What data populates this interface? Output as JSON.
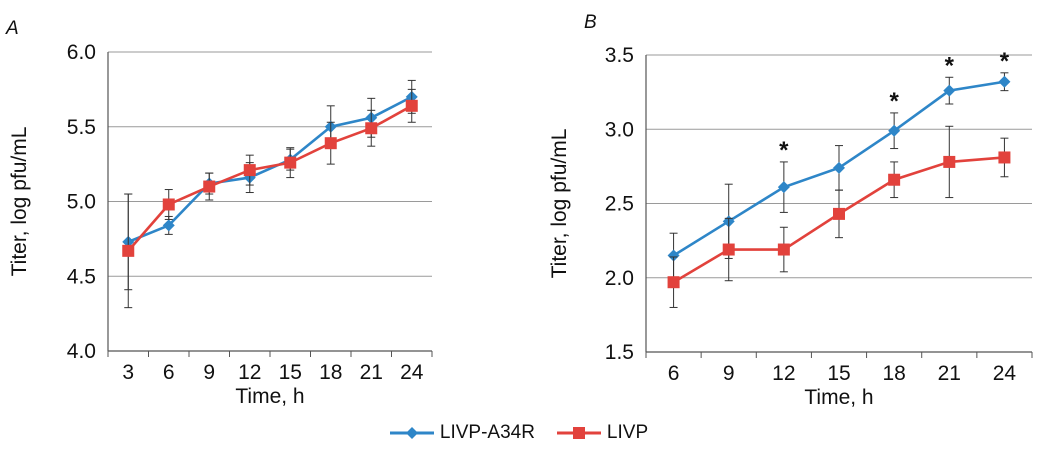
{
  "panels": [
    {
      "label": "A"
    },
    {
      "label": "B"
    }
  ],
  "colors": {
    "LIVP-A34R": "#2e86c8",
    "LIVP": "#e2423c",
    "grid": "#9a9a9a",
    "axis": "#555555",
    "error": "#333333"
  },
  "chart_data": [
    {
      "type": "line",
      "panel": "A",
      "xlabel": "Time, h",
      "ylabel": "Titer, log pfu/mL",
      "x": [
        3,
        6,
        9,
        12,
        15,
        18,
        21,
        24
      ],
      "ylim": [
        4.0,
        6.0
      ],
      "yticks": [
        4.0,
        4.5,
        5.0,
        5.5,
        6.0
      ],
      "ytick_labels": [
        "4.0",
        "4.5",
        "5.0",
        "5.5",
        "6.0"
      ],
      "grid": "horizontal",
      "series": [
        {
          "name": "LIVP-A34R",
          "marker": "diamond",
          "values": [
            4.73,
            4.84,
            5.12,
            5.16,
            5.28,
            5.5,
            5.56,
            5.7
          ],
          "errors": [
            0.32,
            0.06,
            0.07,
            0.1,
            0.07,
            0.14,
            0.13,
            0.11
          ]
        },
        {
          "name": "LIVP",
          "marker": "square",
          "values": [
            4.67,
            4.98,
            5.1,
            5.21,
            5.26,
            5.39,
            5.49,
            5.64
          ],
          "errors": [
            0.38,
            0.1,
            0.09,
            0.1,
            0.1,
            0.14,
            0.12,
            0.11
          ]
        }
      ],
      "annotations": []
    },
    {
      "type": "line",
      "panel": "B",
      "xlabel": "Time, h",
      "ylabel": "Titer, log pfu/mL",
      "x": [
        6,
        9,
        12,
        15,
        18,
        21,
        24
      ],
      "ylim": [
        1.5,
        3.5
      ],
      "yticks": [
        1.5,
        2.0,
        2.5,
        3.0,
        3.5
      ],
      "ytick_labels": [
        "1.5",
        "2.0",
        "2.5",
        "3.0",
        "3.5"
      ],
      "grid": "horizontal",
      "series": [
        {
          "name": "LIVP-A34R",
          "marker": "diamond",
          "values": [
            2.15,
            2.38,
            2.61,
            2.74,
            2.99,
            3.26,
            3.32
          ],
          "errors": [
            0.15,
            0.25,
            0.17,
            0.15,
            0.12,
            0.09,
            0.06
          ]
        },
        {
          "name": "LIVP",
          "marker": "square",
          "values": [
            1.97,
            2.19,
            2.19,
            2.43,
            2.66,
            2.78,
            2.81
          ],
          "errors": [
            0.17,
            0.21,
            0.15,
            0.16,
            0.12,
            0.24,
            0.13
          ]
        }
      ],
      "annotations": [
        {
          "x": 12,
          "text": "*"
        },
        {
          "x": 18,
          "text": "*"
        },
        {
          "x": 21,
          "text": "*"
        },
        {
          "x": 24,
          "text": "*"
        }
      ]
    }
  ],
  "legend": [
    {
      "name": "LIVP-A34R",
      "marker": "diamond"
    },
    {
      "name": "LIVP",
      "marker": "square"
    }
  ]
}
